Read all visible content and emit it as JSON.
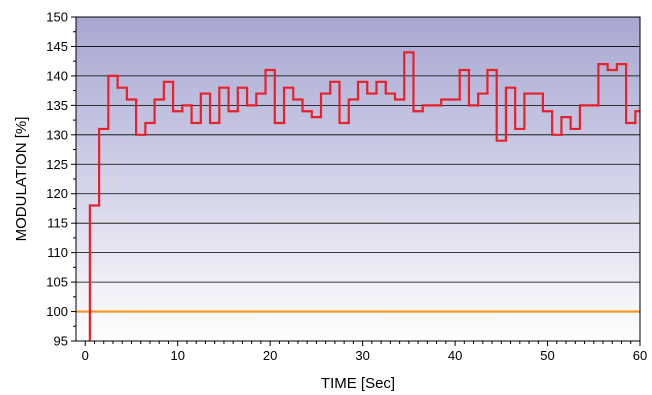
{
  "chart_data": {
    "type": "line",
    "title": "",
    "xlabel": "TIME [Sec]",
    "ylabel": "MODULATION [%]",
    "xlim": [
      -1,
      60
    ],
    "ylim": [
      95,
      150
    ],
    "x_ticks": [
      0,
      10,
      20,
      30,
      40,
      50,
      60
    ],
    "x_tick_labels": [
      "0",
      "10",
      "20",
      "30",
      "40",
      "50",
      "60"
    ],
    "y_ticks": [
      95,
      100,
      105,
      110,
      115,
      120,
      125,
      130,
      135,
      140,
      145,
      150
    ],
    "y_tick_labels": [
      "95",
      "100",
      "105",
      "110",
      "115",
      "120",
      "125",
      "130",
      "135",
      "140",
      "145",
      "150"
    ],
    "grid": true,
    "step": true,
    "reference_line": {
      "y": 100,
      "color": "#f7941d"
    },
    "series": [
      {
        "color": "#e8202a",
        "start_x": 0.5,
        "initial_y": 95,
        "x": [
          0.5,
          1.5,
          2.5,
          3.5,
          4.5,
          5.5,
          6.5,
          7.5,
          8.5,
          9.5,
          10.5,
          11.5,
          12.5,
          13.5,
          14.5,
          15.5,
          16.5,
          17.5,
          18.5,
          19.5,
          20.5,
          21.5,
          22.5,
          23.5,
          24.5,
          25.5,
          26.5,
          27.5,
          28.5,
          29.5,
          30.5,
          31.5,
          32.5,
          33.5,
          34.5,
          35.5,
          36.5,
          37.5,
          38.5,
          39.5,
          40.5,
          41.5,
          42.5,
          43.5,
          44.5,
          45.5,
          46.5,
          47.5,
          48.5,
          49.5,
          50.5,
          51.5,
          52.5,
          53.5,
          54.5,
          55.5,
          56.5,
          57.5,
          58.5,
          59.5
        ],
        "y": [
          118,
          131,
          140,
          138,
          136,
          130,
          132,
          136,
          139,
          134,
          135,
          132,
          137,
          132,
          138,
          134,
          138,
          135,
          137,
          141,
          132,
          138,
          136,
          134,
          133,
          137,
          139,
          132,
          136,
          139,
          137,
          139,
          137,
          136,
          144,
          134,
          135,
          135,
          136,
          136,
          141,
          135,
          137,
          141,
          129,
          138,
          131,
          137,
          137,
          134,
          130,
          133,
          131,
          135,
          135,
          142,
          141,
          142,
          132,
          134
        ]
      }
    ]
  }
}
